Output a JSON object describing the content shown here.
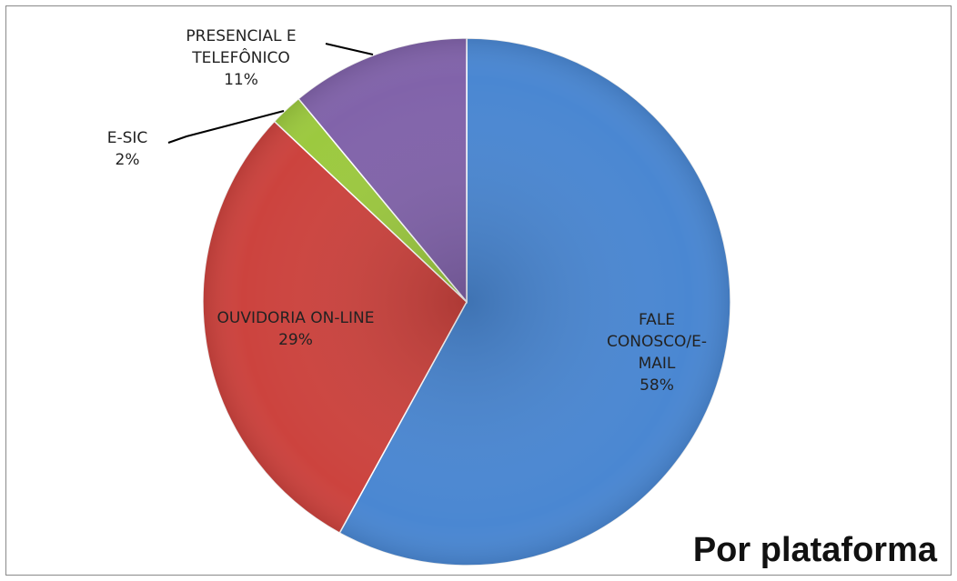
{
  "chart_data": {
    "type": "pie",
    "title": "Por plataforma",
    "categories": [
      "FALE CONOSCO/E-MAIL",
      "OUVIDORIA ON-LINE",
      "E-SIC",
      "PRESENCIAL E TELEFÔNICO"
    ],
    "values": [
      58,
      29,
      2,
      11
    ],
    "value_labels": [
      "58%",
      "29%",
      "2%",
      "11%"
    ],
    "colors": [
      "#4a87d2",
      "#cc433e",
      "#9cc93f",
      "#8163aa"
    ]
  }
}
